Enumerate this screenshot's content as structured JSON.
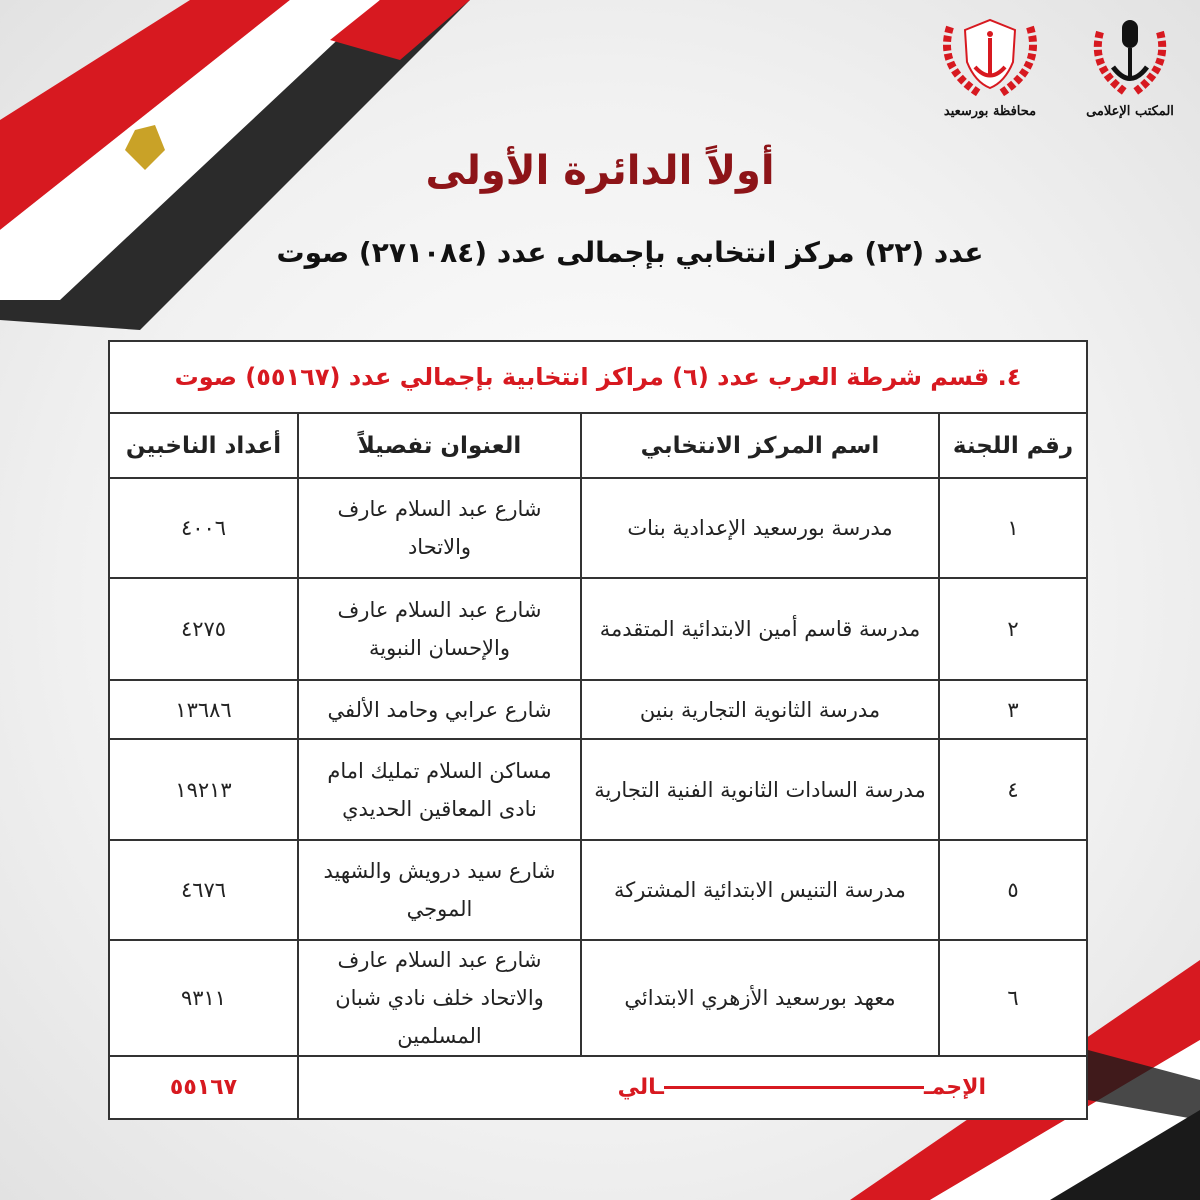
{
  "logos": [
    {
      "caption": "المكتب الإعلامى"
    },
    {
      "caption": "محافظة بورسعيد"
    }
  ],
  "title": "أولاً الدائرة الأولى",
  "subtitle": "عدد (٢٢) مركز انتخابي بإجمالى عدد (٢٧١٠٨٤) صوت",
  "table": {
    "section_heading": "٤. قسم شرطة العرب عدد (٦) مراكز انتخابية بإجمالي عدد (٥٥١٦٧) صوت",
    "headers": {
      "committee": "رقم اللجنة",
      "center": "اسم المركز الانتخابي",
      "address": "العنوان تفصيلاً",
      "voters": "أعداد الناخبين"
    },
    "rows": [
      {
        "committee": "١",
        "center": "مدرسة بورسعيد الإعدادية بنات",
        "address": "شارع عبد السلام عارف والاتحاد",
        "voters": "٤٠٠٦"
      },
      {
        "committee": "٢",
        "center": "مدرسة قاسم أمين الابتدائية المتقدمة",
        "address": "شارع عبد السلام عارف والإحسان النبوية",
        "voters": "٤٢٧٥"
      },
      {
        "committee": "٣",
        "center": "مدرسة الثانوية التجارية بنين",
        "address": "شارع عرابي وحامد الألفي",
        "voters": "١٣٦٨٦"
      },
      {
        "committee": "٤",
        "center": "مدرسة السادات الثانوية الفنية التجارية",
        "address": "مساكن السلام تمليك امام نادى المعاقين الحديدي",
        "voters": "١٩٢١٣"
      },
      {
        "committee": "٥",
        "center": "مدرسة التنيس الابتدائية المشتركة",
        "address": "شارع سيد درويش والشهيد الموجي",
        "voters": "٤٦٧٦"
      },
      {
        "committee": "٦",
        "center": "معهد بورسعيد الأزهري الابتدائي",
        "address": "شارع عبد السلام عارف والاتحاد خلف نادي شبان المسلمين",
        "voters": "٩٣١١"
      }
    ],
    "total_label_start": "الإجمـ",
    "total_label_end": "ـالي",
    "total_value": "٥٥١٦٧"
  },
  "colors": {
    "accent_red": "#d71920",
    "title_red": "#8d1418",
    "flag_black": "#1a1a1a"
  }
}
